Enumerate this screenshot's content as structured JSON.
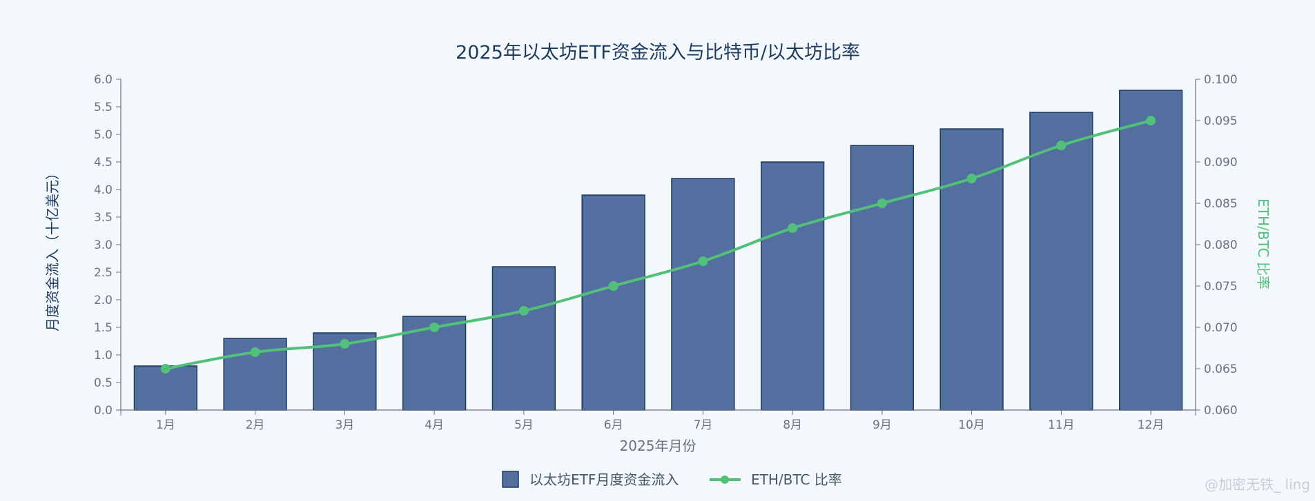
{
  "chart_data": {
    "type": "bar+line",
    "title": "2025年以太坊ETF资金流入与比特币/以太坊比率",
    "xlabel": "2025年月份",
    "ylabel_left": "月度资金流入（十亿美元）",
    "ylabel_right": "ETH/BTC 比率",
    "categories": [
      "1月",
      "2月",
      "3月",
      "4月",
      "5月",
      "6月",
      "7月",
      "8月",
      "9月",
      "10月",
      "11月",
      "12月"
    ],
    "series": [
      {
        "name": "以太坊ETF月度资金流入",
        "kind": "bar",
        "axis": "left",
        "color": "#536fa0",
        "values": [
          0.8,
          1.3,
          1.4,
          1.7,
          2.6,
          3.9,
          4.2,
          4.5,
          4.8,
          5.1,
          5.4,
          5.8
        ]
      },
      {
        "name": "ETH/BTC 比率",
        "kind": "line",
        "axis": "right",
        "color": "#52c07a",
        "values": [
          0.065,
          0.067,
          0.068,
          0.07,
          0.072,
          0.075,
          0.078,
          0.082,
          0.085,
          0.088,
          0.092,
          0.095
        ]
      }
    ],
    "ylim_left": [
      0,
      6
    ],
    "yticks_left": [
      "0.0",
      "0.5",
      "1.0",
      "1.5",
      "2.0",
      "2.5",
      "3.0",
      "3.5",
      "4.0",
      "4.5",
      "5.0",
      "5.5",
      "6.0"
    ],
    "ylim_right": [
      0.06,
      0.1
    ],
    "yticks_right": [
      "0.060",
      "0.065",
      "0.070",
      "0.075",
      "0.080",
      "0.085",
      "0.090",
      "0.095",
      "0.100"
    ],
    "grid": false,
    "legend_position": "bottom-center"
  },
  "watermark": "@加密无铁_ ling"
}
